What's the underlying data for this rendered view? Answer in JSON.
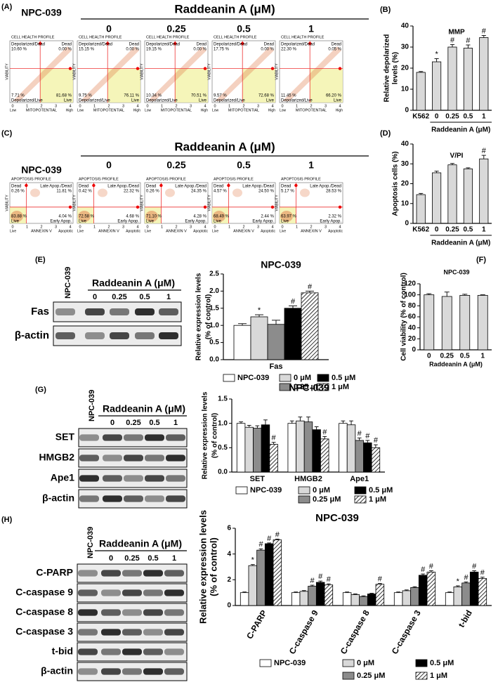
{
  "panel_labels": [
    "(A)",
    "(B)",
    "(C)",
    "(D)",
    "(E)",
    "(F)",
    "(G)",
    "(H)"
  ],
  "flow_panels": [
    {
      "treatment_title": "Raddeanin A (μM)",
      "control_label": "NPC-039",
      "doses": [
        "0",
        "0.25",
        "0.5",
        "1"
      ],
      "plot_title": "CELL HEALTH PROFILE",
      "x_label": "MITOPOTENTIAL",
      "y_label": "VIABILITY",
      "x_ticks": [
        "0",
        "1",
        "2",
        "3",
        "4"
      ],
      "x_end_labels": [
        "Low",
        "High"
      ],
      "quadrant_names": [
        "Depolarized/Dead",
        "Dead",
        "Depolarized/Live",
        "Live"
      ],
      "plots": [
        [
          "10.60 %",
          "0.00 %",
          "7.71 %",
          "81.68 %"
        ],
        [
          "15.15 %",
          "0.00 %",
          "9.75 %",
          "76.11 %"
        ],
        [
          "19.15 %",
          "0.00 %",
          "10.34 %",
          "70.51 %"
        ],
        [
          "17.75 %",
          "0.00 %",
          "9.57 %",
          "72.68 %"
        ],
        [
          "22.30 %",
          "0.05 %",
          "11.45 %",
          "66.20 %"
        ]
      ]
    },
    {
      "treatment_title": "Raddeanin A (μM)",
      "control_label": "NPC-039",
      "doses": [
        "0",
        "0.25",
        "0.5",
        "1"
      ],
      "plot_title": "APOPTOSIS PROFILE",
      "x_label": "ANNEXIN V",
      "y_label": "VIABILITY",
      "x_ticks": [
        "0",
        "1",
        "2",
        "3",
        "4"
      ],
      "x_end_labels": [
        "Live",
        "Apoptotic"
      ],
      "quadrant_names": [
        "Dead",
        "Late Apop./Dead",
        "Live",
        "Early Apop."
      ],
      "plots": [
        [
          "0.26 %",
          "11.81 %",
          "83.88 %",
          "4.04 %"
        ],
        [
          "0.42 %",
          "22.32 %",
          "72.58 %",
          "4.68 %"
        ],
        [
          "0.26 %",
          "24.35 %",
          "71.10 %",
          "4.28 %"
        ],
        [
          "4.57 %",
          "24.50 %",
          "68.49 %",
          "2.44 %"
        ],
        [
          "5.17 %",
          "28.53 %",
          "63.97 %",
          "2.32 %"
        ]
      ]
    }
  ],
  "blots": [
    {
      "control_label": "NPC-039",
      "treatment_title": "Raddeanin A (μM)",
      "doses": [
        "0",
        "0.25",
        "0.5",
        "1"
      ],
      "rows": [
        "Fas",
        "β-actin"
      ]
    },
    {
      "control_label": "NPC-039",
      "treatment_title": "Raddeanin A (μM)",
      "doses": [
        "0",
        "0.25",
        "0.5",
        "1"
      ],
      "rows": [
        "SET",
        "HMGB2",
        "Ape1",
        "β-actin"
      ]
    },
    {
      "control_label": "NPC-039",
      "treatment_title": "Raddeanin A (μM)",
      "doses": [
        "0",
        "0.25",
        "0.5",
        "1"
      ],
      "rows": [
        "C-PARP",
        "C-caspase 9",
        "C-caspase 8",
        "C-caspase 3",
        "t-bid",
        "β-actin"
      ]
    }
  ],
  "chart_data": [
    {
      "type": "bar",
      "title": "MMP",
      "y_label": [
        "Relative depolarized",
        "levels (%)"
      ],
      "x_label": "Raddeanin A (μM)",
      "categories": [
        "K562",
        "0",
        "0.25",
        "0.5",
        "1"
      ],
      "values": [
        18,
        23,
        30,
        29.5,
        34.5
      ],
      "errors": [
        0.4,
        1.5,
        1.2,
        1.5,
        1.0
      ],
      "significance": [
        null,
        "*",
        "#",
        "#",
        "#"
      ],
      "color": "#d9d9d9",
      "ylim": [
        0,
        40
      ],
      "yticks": [
        0,
        10,
        20,
        30,
        40
      ]
    },
    {
      "type": "bar",
      "title": "V/PI",
      "y_label": [
        "Apoptosis cells (%)"
      ],
      "x_label": "Raddeanin A (μM)",
      "categories": [
        "K562",
        "0",
        "0.25",
        "0.5",
        "1"
      ],
      "values": [
        14.5,
        25.5,
        29.5,
        27.5,
        32.5
      ],
      "errors": [
        0.6,
        0.8,
        0.7,
        0.5,
        1.8
      ],
      "significance": [
        null,
        null,
        null,
        null,
        "#"
      ],
      "color": "#d9d9d9",
      "ylim": [
        0,
        40
      ],
      "yticks": [
        0,
        10,
        20,
        30,
        40
      ]
    },
    {
      "type": "bar",
      "title": "NPC-039",
      "y_label": [
        "Relative expression levels",
        "(% of control)"
      ],
      "categories": [
        "Fas"
      ],
      "series": [
        {
          "name": "NPC-039",
          "color": "#ffffff",
          "values": [
            1.0
          ],
          "errors": [
            0.05
          ],
          "significance": [
            null
          ]
        },
        {
          "name": "0 μM",
          "color": "#d9d9d9",
          "values": [
            1.25
          ],
          "errors": [
            0.06
          ],
          "significance": [
            "*"
          ]
        },
        {
          "name": "0.25 μM",
          "color": "#8c8c8c",
          "values": [
            1.03
          ],
          "errors": [
            0.12
          ],
          "significance": [
            null
          ]
        },
        {
          "name": "0.5 μM",
          "color": "#000000",
          "values": [
            1.5
          ],
          "errors": [
            0.07
          ],
          "significance": [
            "#"
          ]
        },
        {
          "name": "1 μM",
          "color": "#ffffff",
          "hatch": true,
          "values": [
            1.95
          ],
          "errors": [
            0.05
          ],
          "significance": [
            "#"
          ]
        }
      ],
      "ylim": [
        0,
        2.5
      ],
      "yticks": [
        {
          "value": 0,
          "label": "0.0"
        },
        0.5,
        {
          "value": 1,
          "label": "1.0"
        },
        1.5,
        {
          "value": 2,
          "label": "2.0"
        },
        2.5
      ]
    },
    {
      "type": "bar",
      "title": "NPC-039",
      "y_label": [
        "Cell viability (% of control)"
      ],
      "x_label": "Raddeanin A (μM)",
      "categories": [
        "0",
        "0.25",
        "0.5",
        "1"
      ],
      "values": [
        100,
        97,
        99,
        99
      ],
      "errors": [
        2,
        8,
        2,
        1
      ],
      "color": "#d9d9d9",
      "ylim": [
        0,
        120
      ],
      "yticks": [
        0,
        20,
        40,
        60,
        80,
        100,
        120
      ]
    },
    {
      "type": "bar",
      "title": "NPC-039",
      "y_label": [
        "Relative expression levels",
        "(% of control)"
      ],
      "categories": [
        "SET",
        "HMGB2",
        "Ape1"
      ],
      "series": [
        {
          "name": "NPC-039",
          "color": "#ffffff",
          "values": [
            1.0,
            1.0,
            1.0
          ],
          "errors": [
            0.03,
            0.05,
            0.05
          ],
          "significance": [
            null,
            null,
            null
          ]
        },
        {
          "name": "0 μM",
          "color": "#d9d9d9",
          "values": [
            0.92,
            1.05,
            0.97
          ],
          "errors": [
            0.04,
            0.08,
            0.08
          ],
          "significance": [
            null,
            null,
            null
          ]
        },
        {
          "name": "0.25 μM",
          "color": "#8c8c8c",
          "values": [
            0.9,
            1.03,
            0.65
          ],
          "errors": [
            0.05,
            0.1,
            0.05
          ],
          "significance": [
            null,
            null,
            "#"
          ]
        },
        {
          "name": "0.5 μM",
          "color": "#000000",
          "values": [
            0.97,
            0.87,
            0.6
          ],
          "errors": [
            0.1,
            0.06,
            0.05
          ],
          "significance": [
            null,
            null,
            "#"
          ]
        },
        {
          "name": "1 μM",
          "color": "#ffffff",
          "hatch": true,
          "values": [
            0.57,
            0.68,
            0.5
          ],
          "errors": [
            0.04,
            0.05,
            0.06
          ],
          "significance": [
            "#",
            "#",
            "#"
          ]
        }
      ],
      "ylim": [
        0,
        1.5
      ],
      "yticks": [
        {
          "value": 0,
          "label": "0.0"
        },
        0.5,
        {
          "value": 1,
          "label": "1.0"
        },
        1.5
      ]
    },
    {
      "type": "bar",
      "title": "NPC-039",
      "y_label": [
        "Relative expression levels",
        "(% of control)"
      ],
      "categories": [
        "C-PARP",
        "C-caspase 9",
        "C-caspase 8",
        "C-caspase 3",
        "t-bid"
      ],
      "series": [
        {
          "name": "NPC-039",
          "color": "#ffffff",
          "values": [
            1,
            1,
            1,
            1,
            1
          ],
          "errors": [
            0.05,
            0.05,
            0.05,
            0.05,
            0.05
          ],
          "significance": [
            null,
            null,
            null,
            null,
            null
          ]
        },
        {
          "name": "0 μM",
          "color": "#d9d9d9",
          "values": [
            3.1,
            1.1,
            0.85,
            1.15,
            1.45
          ],
          "errors": [
            0.08,
            0.06,
            0.05,
            0.06,
            0.08
          ],
          "significance": [
            "*",
            null,
            null,
            null,
            "*"
          ]
        },
        {
          "name": "0.25 μM",
          "color": "#8c8c8c",
          "values": [
            4.3,
            1.5,
            0.7,
            1.4,
            1.75
          ],
          "errors": [
            0.1,
            0.08,
            0.05,
            0.06,
            0.08
          ],
          "significance": [
            "#",
            "#",
            null,
            null,
            "#"
          ]
        },
        {
          "name": "0.5 μM",
          "color": "#000000",
          "values": [
            4.8,
            1.8,
            0.9,
            2.35,
            2.6
          ],
          "errors": [
            0.06,
            0.1,
            0.05,
            0.1,
            0.1
          ],
          "significance": [
            "#",
            "#",
            null,
            "#",
            "#"
          ]
        },
        {
          "name": "1 μM",
          "color": "#ffffff",
          "hatch": true,
          "values": [
            5.1,
            1.6,
            1.65,
            2.6,
            2.1
          ],
          "errors": [
            0.06,
            0.08,
            0.06,
            0.1,
            0.1
          ],
          "significance": [
            "#",
            "#",
            "#",
            "#",
            "#"
          ]
        }
      ],
      "ylim": [
        0,
        6
      ],
      "yticks": [
        0,
        2,
        4,
        6
      ]
    }
  ]
}
